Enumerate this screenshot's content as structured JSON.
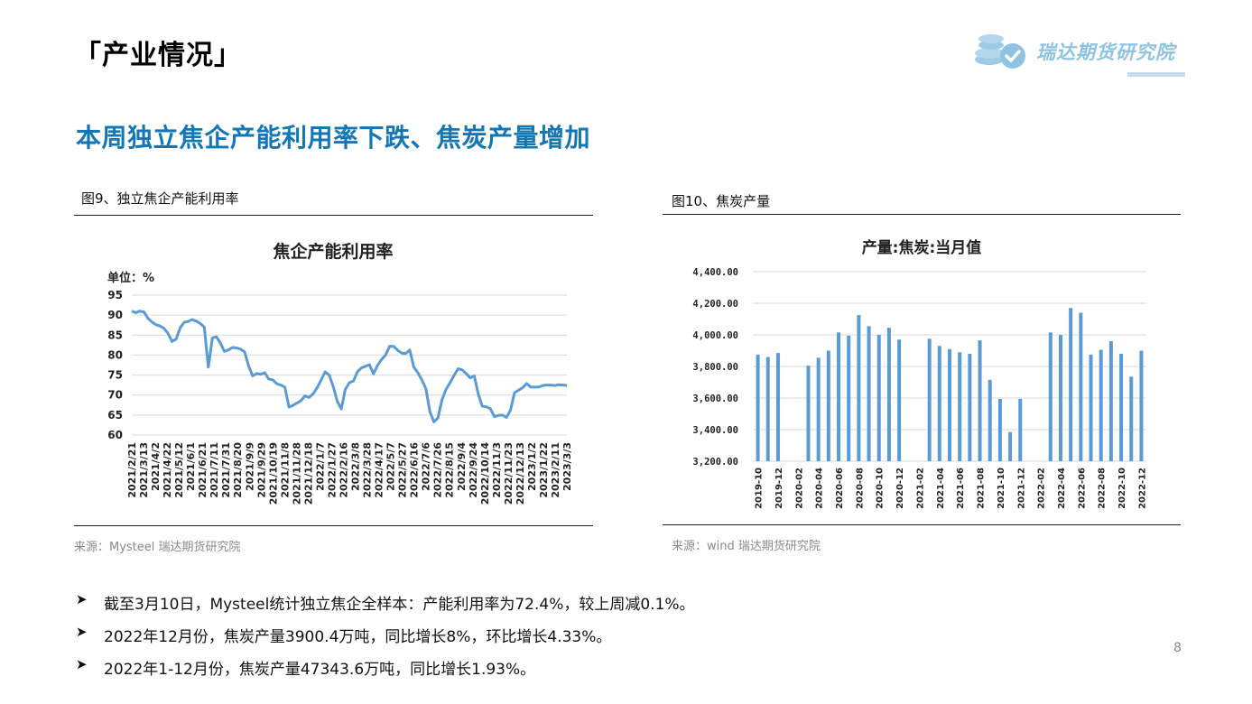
{
  "header": {
    "section_title": "「产业情况」",
    "logo_text": "瑞达期货研究院"
  },
  "headline": "本周独立焦企产能利用率下跌、焦炭产量增加",
  "left_figure": {
    "label": "图9、独立焦企产能利用率",
    "source": "来源：Mysteel   瑞达期货研究院"
  },
  "right_figure": {
    "label": "图10、焦炭产量",
    "source": "来源：wind  瑞达期货研究院"
  },
  "bullets": [
    "截至3月10日，Mysteel统计独立焦企全样本：产能利用率为72.4%，较上周减0.1%。",
    "2022年12月份，焦炭产量3900.4万吨，同比增长8%，环比增长4.33%。",
    "2022年1-12月份，焦炭产量47343.6万吨，同比增长1.93%。"
  ],
  "bullet_arrow": "➤",
  "page_number": "8",
  "colors": {
    "headline": "#1377b5",
    "series": "#5b9bd5",
    "logo": "#8fc3e2"
  },
  "chart_data": [
    {
      "type": "line",
      "title": "焦企产能利用率",
      "ylabel": "单位：%",
      "ylim": [
        60,
        95
      ],
      "yticks": [
        60,
        65,
        70,
        75,
        80,
        85,
        90,
        95
      ],
      "grid": true,
      "x_tick_labels": [
        "2021/2/21",
        "2021/3/13",
        "2021/4/2",
        "2021/4/22",
        "2021/5/12",
        "2021/6/1",
        "2021/6/21",
        "2021/7/11",
        "2021/7/31",
        "2021/8/20",
        "2021/9/9",
        "2021/9/29",
        "2021/10/19",
        "2021/11/8",
        "2021/11/28",
        "2021/12/18",
        "2022/1/7",
        "2022/1/27",
        "2022/2/16",
        "2022/3/8",
        "2022/3/28",
        "2022/4/17",
        "2022/5/7",
        "2022/5/27",
        "2022/6/16",
        "2022/7/6",
        "2022/7/26",
        "2022/8/15",
        "2022/9/4",
        "2022/9/24",
        "2022/10/14",
        "2022/11/3",
        "2022/11/23",
        "2022/12/13",
        "2023/1/2",
        "2023/1/22",
        "2023/2/11",
        "2023/3/3"
      ],
      "series": [
        {
          "values": [
            91.0,
            90.6,
            91.0,
            90.8,
            89.2,
            88.3,
            87.6,
            87.3,
            86.7,
            85.4,
            83.4,
            84.0,
            86.8,
            88.2,
            88.4,
            88.9,
            88.5,
            87.9,
            87.0,
            77.0,
            84.3,
            84.6,
            83.0,
            80.9,
            81.3,
            81.9,
            81.8,
            81.5,
            80.8,
            77.3,
            74.8,
            75.4,
            75.2,
            75.6,
            74.0,
            73.8,
            72.8,
            72.5,
            72.0,
            67.0,
            67.4,
            68.0,
            68.6,
            69.8,
            69.4,
            70.3,
            71.8,
            73.8,
            75.8,
            75.0,
            72.2,
            68.5,
            66.5,
            71.4,
            73.1,
            73.5,
            75.8,
            76.8,
            77.2,
            77.6,
            75.3,
            77.4,
            78.9,
            80.0,
            82.2,
            82.2,
            81.2,
            80.5,
            80.4,
            81.3,
            77.0,
            75.6,
            73.8,
            71.6,
            65.8,
            63.3,
            64.3,
            68.8,
            71.4,
            73.1,
            74.9,
            76.6,
            76.3,
            75.4,
            74.3,
            74.8,
            70.3,
            67.2,
            67.1,
            66.6,
            64.6,
            64.9,
            65.0,
            64.4,
            66.2,
            70.6,
            71.2,
            71.8,
            72.9,
            72.0,
            72.0,
            72.0,
            72.4,
            72.5,
            72.5,
            72.4,
            72.6,
            72.5,
            72.4
          ]
        }
      ]
    },
    {
      "type": "bar",
      "title": "产量:焦炭:当月值",
      "ylim": [
        3200,
        4400
      ],
      "yticks": [
        "3,200.00",
        "3,400.00",
        "3,600.00",
        "3,800.00",
        "4,000.00",
        "4,200.00",
        "4,400.00"
      ],
      "grid": true,
      "categories": [
        "2019-10",
        "2019-11",
        "2019-12",
        "2020-01",
        "2020-02",
        "2020-03",
        "2020-04",
        "2020-05",
        "2020-06",
        "2020-07",
        "2020-08",
        "2020-09",
        "2020-10",
        "2020-11",
        "2020-12",
        "2021-01",
        "2021-02",
        "2021-03",
        "2021-04",
        "2021-05",
        "2021-06",
        "2021-07",
        "2021-08",
        "2021-09",
        "2021-10",
        "2021-11",
        "2021-12",
        "2022-01",
        "2022-02",
        "2022-03",
        "2022-04",
        "2022-05",
        "2022-06",
        "2022-07",
        "2022-08",
        "2022-09",
        "2022-10",
        "2022-11",
        "2022-12"
      ],
      "x_tick_labels": [
        "2019-10",
        "2019-12",
        "2020-02",
        "2020-04",
        "2020-06",
        "2020-08",
        "2020-10",
        "2020-12",
        "2021-02",
        "2021-04",
        "2021-06",
        "2021-08",
        "2021-10",
        "2021-12",
        "2022-02",
        "2022-04",
        "2022-06",
        "2022-08",
        "2022-10",
        "2022-12"
      ],
      "values": [
        3875,
        3860,
        3885,
        null,
        null,
        3805,
        3855,
        3900,
        4015,
        3995,
        4125,
        4055,
        4000,
        4045,
        3970,
        null,
        null,
        3975,
        3930,
        3910,
        3890,
        3880,
        3965,
        3715,
        3595,
        3385,
        3595,
        null,
        null,
        4015,
        4000,
        4170,
        4140,
        3875,
        3905,
        3960,
        3880,
        3735,
        3900
      ]
    }
  ]
}
